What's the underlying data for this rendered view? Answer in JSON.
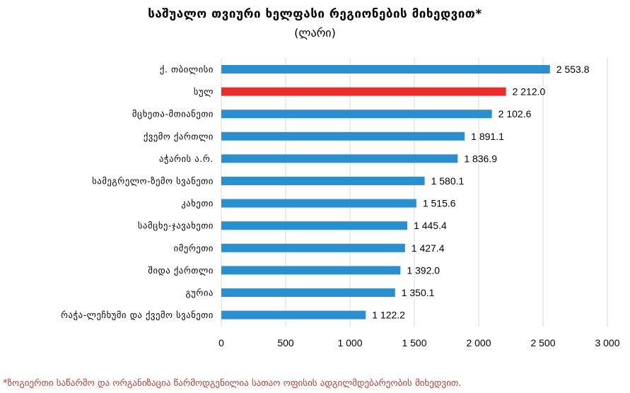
{
  "chart_data": {
    "type": "bar",
    "orientation": "horizontal",
    "title": "საშუალო თვიური ხელფასი რეგიონების მიხედვით*",
    "subtitle": "(ლარი)",
    "categories": [
      "ქ. თბილისი",
      "სულ",
      "მცხეთა-მთიანეთი",
      "ქვემო ქართლი",
      "აჭარის ა.რ.",
      "სამეგრელო-ზემო სვანეთი",
      "კახეთი",
      "სამცხე-ჯავახეთი",
      "იმერეთი",
      "შიდა ქართლი",
      "გურია",
      "რაჭა-ლეჩხუმი და ქვემო სვანეთი"
    ],
    "values": [
      2553.8,
      2212.0,
      2102.6,
      1891.1,
      1836.9,
      1580.1,
      1515.6,
      1445.4,
      1427.4,
      1392.0,
      1350.1,
      1122.2
    ],
    "value_labels": [
      "2 553.8",
      "2 212.0",
      "2 102.6",
      "1 891.1",
      "1 836.9",
      "1 580.1",
      "1 515.6",
      "1 445.4",
      "1 427.4",
      "1 392.0",
      "1 350.1",
      "1 122.2"
    ],
    "bar_colors": [
      "#2a8fd1",
      "#ee2a2a",
      "#2a8fd1",
      "#2a8fd1",
      "#2a8fd1",
      "#2a8fd1",
      "#2a8fd1",
      "#2a8fd1",
      "#2a8fd1",
      "#2a8fd1",
      "#2a8fd1",
      "#2a8fd1"
    ],
    "xlim": [
      0,
      3000
    ],
    "x_ticks": [
      0,
      500,
      1000,
      1500,
      2000,
      2500,
      3000
    ],
    "x_tick_labels": [
      "0",
      "500",
      "1 000",
      "1 500",
      "2 000",
      "2 500",
      "3 000"
    ],
    "grid": "vertical",
    "legend": "none"
  },
  "footnote": "*ზოგიერთი საწარმო და ორგანიზაცია წარმოდგენილია სათაო ოფისის ადგილმდებარეობის მიხედვით.",
  "colors": {
    "bar_default": "#2a8fd1",
    "bar_highlight": "#ee2a2a",
    "footnote": "#c0392b",
    "grid": "#d9d9d9"
  }
}
